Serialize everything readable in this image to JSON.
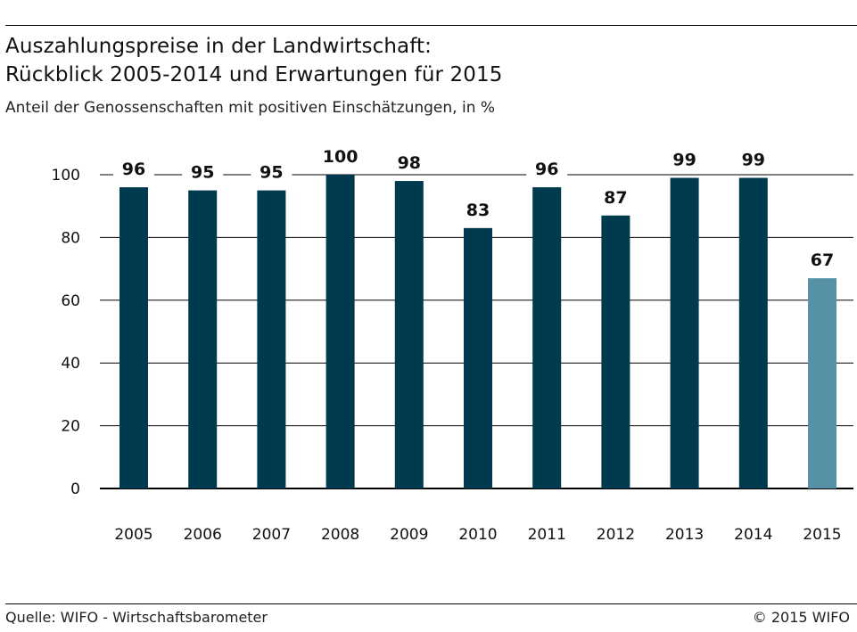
{
  "header": {
    "title_line1": "Auszahlungspreise in der Landwirtschaft:",
    "title_line2": "Rückblick 2005-2014 und Erwartungen für 2015",
    "subtitle": "Anteil der Genossenschaften mit positiven Einschätzungen, in %"
  },
  "footer": {
    "source": "Quelle: WIFO - Wirtschaftsbarometer",
    "copyright": "© 2015 WIFO"
  },
  "colors": {
    "bar": "#003a4f",
    "bar_expectation": "#5691a5",
    "axis": "#000000",
    "grid": "#000000"
  },
  "chart_data": {
    "type": "bar",
    "categories": [
      "2005",
      "2006",
      "2007",
      "2008",
      "2009",
      "2010",
      "2011",
      "2012",
      "2013",
      "2014",
      "2015"
    ],
    "values": [
      96,
      95,
      95,
      100,
      98,
      83,
      96,
      87,
      99,
      99,
      67
    ],
    "data_labels": [
      "96",
      "95",
      "95",
      "100",
      "98",
      "83",
      "96",
      "87",
      "99",
      "99",
      "67"
    ],
    "highlight_index": 10,
    "ylim": [
      0,
      100
    ],
    "yticks": [
      0,
      20,
      40,
      60,
      80,
      100
    ],
    "grid": true,
    "title": "",
    "xlabel": "",
    "ylabel": ""
  }
}
